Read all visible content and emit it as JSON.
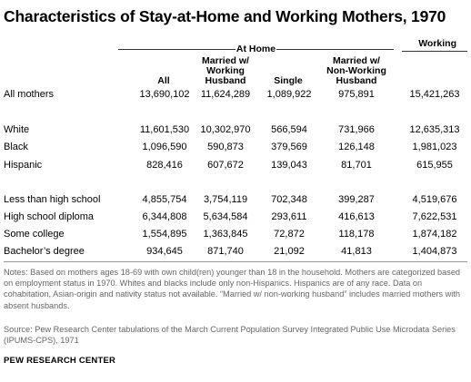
{
  "title": "Characteristics of Stay-at-Home  and Working Mothers, 1970",
  "group_header": "At  Home",
  "working_header": "Working",
  "columns": [
    {
      "label": "All"
    },
    {
      "label": "Married w/ Working Husband"
    },
    {
      "label": "Single"
    },
    {
      "label": "Married w/ Non-Working Husband"
    }
  ],
  "col_lines": {
    "married_working": [
      "Married w/",
      "Working",
      "Husband"
    ],
    "married_nonworking": [
      "Married w/",
      "Non-Working",
      "Husband"
    ]
  },
  "rows": [
    {
      "label": "All mothers",
      "values": [
        "13,690,102",
        "11,624,289",
        "1,089,922",
        "975,891",
        "15,421,263"
      ]
    },
    {
      "label": "White",
      "values": [
        "11,601,530",
        "10,302,970",
        "566,594",
        "731,966",
        "12,635,313"
      ]
    },
    {
      "label": "Black",
      "values": [
        "1,096,590",
        "590,873",
        "379,569",
        "126,148",
        "1,981,023"
      ]
    },
    {
      "label": "Hispanic",
      "values": [
        "828,416",
        "607,672",
        "139,043",
        "81,701",
        "615,955"
      ]
    },
    {
      "label": "Less than high school",
      "values": [
        "4,855,754",
        "3,754,119",
        "702,348",
        "399,287",
        "4,519,676"
      ]
    },
    {
      "label": "High school diploma",
      "values": [
        "6,344,808",
        "5,634,584",
        "293,611",
        "416,613",
        "7,622,531"
      ]
    },
    {
      "label": "Some college",
      "values": [
        "1,554,895",
        "1,363,845",
        "72,872",
        "118,178",
        "1,874,182"
      ]
    },
    {
      "label": "Bachelor’s degree",
      "values": [
        "934,645",
        "871,740",
        "21,092",
        "41,813",
        "1,404,873"
      ]
    }
  ],
  "notes": "Notes: Based on mothers ages 18-69 with own child(ren) younger than 18 in the household. Mothers are categorized based on employment status in 1970. Whites and blacks include only non-Hispanics. Hispanics are of any race. Data on cohabitation, Asian-origin and nativity status not available. “Married w/ non-working husband” includes married mothers with absent husbands.",
  "source": "Source: Pew Research Center tabulations of the March Current Population Survey Integrated Public Use Microdata Series (IPUMS-CPS), 1971",
  "brand": "PEW RESEARCH CENTER"
}
